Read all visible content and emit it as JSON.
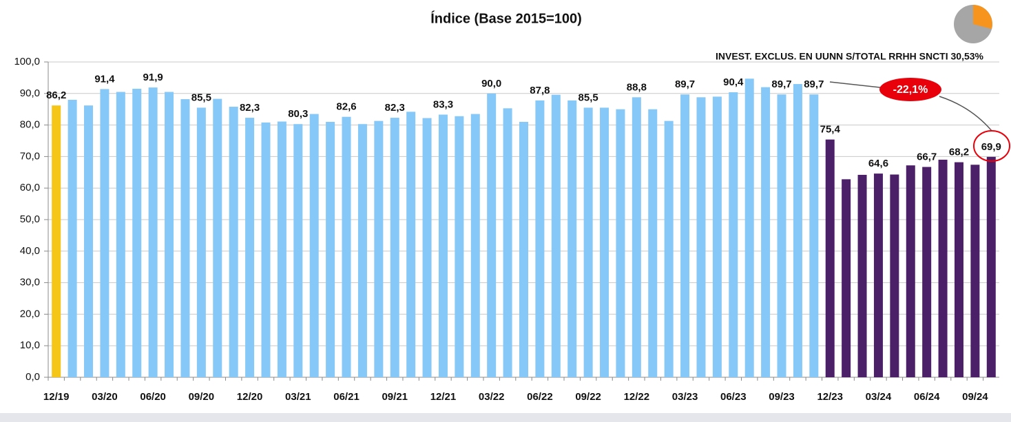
{
  "chart_data": {
    "type": "bar",
    "title": "Índice (Base 2015=100)",
    "annotations": [
      "INVEST. EXCLUS. EN UUNN S/TOTAL RRHH SNCTI  30,53%",
      "-22,1%"
    ],
    "categories": [
      "12/19",
      null,
      null,
      "03/20",
      null,
      null,
      "06/20",
      null,
      null,
      "09/20",
      null,
      null,
      "12/20",
      null,
      null,
      "03/21",
      null,
      null,
      "06/21",
      null,
      null,
      "09/21",
      null,
      null,
      "12/21",
      null,
      null,
      "03/22",
      null,
      null,
      "06/22",
      null,
      null,
      "09/22",
      null,
      null,
      "12/22",
      null,
      null,
      "03/23",
      null,
      null,
      "06/23",
      null,
      null,
      "09/23",
      null,
      null,
      "12/23",
      null,
      null,
      "03/24",
      null,
      null,
      "06/24",
      null,
      null,
      "09/24",
      null
    ],
    "values": [
      86.2,
      88,
      86.2,
      91.4,
      90.5,
      91.5,
      91.9,
      90.5,
      88.2,
      85.5,
      88.3,
      85.8,
      82.3,
      80.8,
      81.1,
      80.3,
      83.5,
      81,
      82.6,
      80.3,
      81.3,
      82.3,
      84.2,
      82.2,
      83.3,
      82.8,
      83.5,
      90,
      85.3,
      81,
      87.8,
      89.6,
      87.8,
      85.5,
      85.5,
      85,
      88.8,
      85,
      81.3,
      89.7,
      88.8,
      89,
      90.4,
      94.7,
      92,
      89.7,
      93,
      89.7,
      75.4,
      62.8,
      64.2,
      64.6,
      64.3,
      67.2,
      66.7,
      69,
      68.2,
      67.4,
      69.9
    ],
    "value_labels": [
      "86,2",
      null,
      null,
      "91,4",
      null,
      null,
      "91,9",
      null,
      null,
      "85,5",
      null,
      null,
      "82,3",
      null,
      null,
      "80,3",
      null,
      null,
      "82,6",
      null,
      null,
      "82,3",
      null,
      null,
      "83,3",
      null,
      null,
      "90,0",
      null,
      null,
      "87,8",
      null,
      null,
      "85,5",
      null,
      null,
      "88,8",
      null,
      null,
      "89,7",
      null,
      null,
      "90,4",
      null,
      null,
      "89,7",
      null,
      "89,7",
      "75,4",
      null,
      null,
      "64,6",
      null,
      null,
      "66,7",
      null,
      "68,2",
      null,
      "69,9"
    ],
    "colors": [
      "#f5c518",
      "#86c8f7",
      "#86c8f7",
      "#86c8f7",
      "#86c8f7",
      "#86c8f7",
      "#86c8f7",
      "#86c8f7",
      "#86c8f7",
      "#86c8f7",
      "#86c8f7",
      "#86c8f7",
      "#86c8f7",
      "#86c8f7",
      "#86c8f7",
      "#86c8f7",
      "#86c8f7",
      "#86c8f7",
      "#86c8f7",
      "#86c8f7",
      "#86c8f7",
      "#86c8f7",
      "#86c8f7",
      "#86c8f7",
      "#86c8f7",
      "#86c8f7",
      "#86c8f7",
      "#86c8f7",
      "#86c8f7",
      "#86c8f7",
      "#86c8f7",
      "#86c8f7",
      "#86c8f7",
      "#86c8f7",
      "#86c8f7",
      "#86c8f7",
      "#86c8f7",
      "#86c8f7",
      "#86c8f7",
      "#86c8f7",
      "#86c8f7",
      "#86c8f7",
      "#86c8f7",
      "#86c8f7",
      "#86c8f7",
      "#86c8f7",
      "#86c8f7",
      "#86c8f7",
      "#4b2068",
      "#4b2068",
      "#4b2068",
      "#4b2068",
      "#4b2068",
      "#4b2068",
      "#4b2068",
      "#4b2068",
      "#4b2068",
      "#4b2068",
      "#4b2068"
    ],
    "ylim": [
      0,
      100
    ],
    "yticks": [
      {
        "value": 0,
        "label": "0,0"
      },
      {
        "value": 10,
        "label": "10,0"
      },
      {
        "value": 20,
        "label": "20,0"
      },
      {
        "value": 30,
        "label": "30,0"
      },
      {
        "value": 40,
        "label": "40,0"
      },
      {
        "value": 50,
        "label": "50,0"
      },
      {
        "value": 60,
        "label": "60,0"
      },
      {
        "value": 70,
        "label": "70,0"
      },
      {
        "value": 80,
        "label": "80,0"
      },
      {
        "value": 90,
        "label": "90,0"
      },
      {
        "value": 100,
        "label": "100,0"
      }
    ],
    "grid": true
  }
}
